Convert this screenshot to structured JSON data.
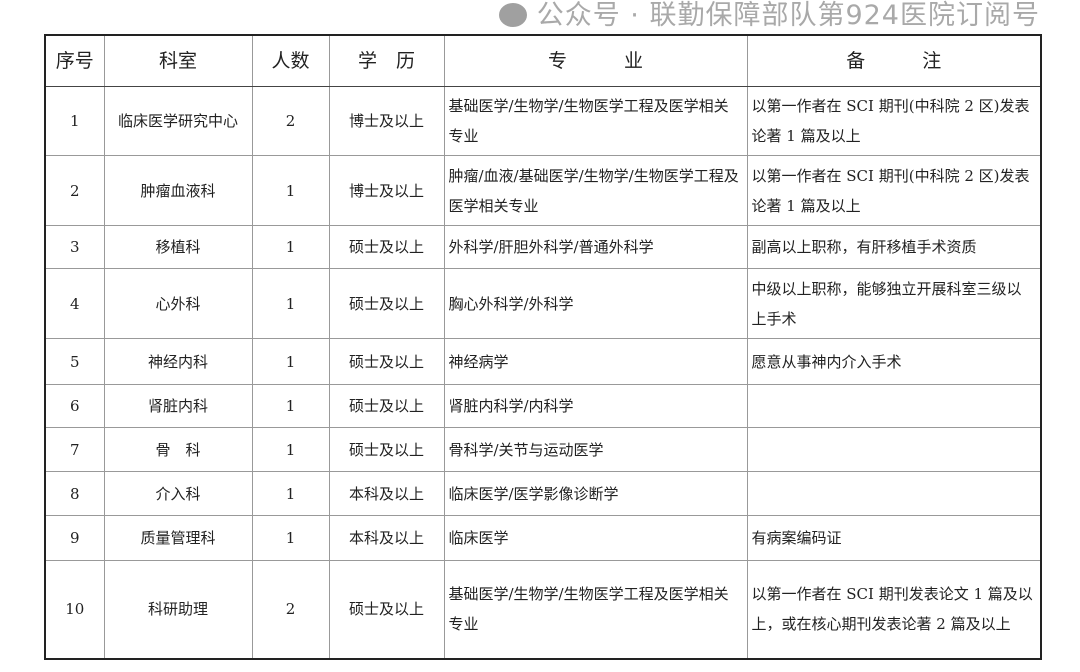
{
  "table": {
    "headers": [
      "序号",
      "科室",
      "人数",
      "学　历",
      "专　　　业",
      "备　　　注"
    ],
    "rows": [
      {
        "no": "1",
        "dept": "临床医学研究中心",
        "count": "2",
        "edu": "博士及以上",
        "major": "基础医学/生物学/生物医学工程及医学相关专业",
        "note": "以第一作者在 SCI 期刊(中科院 2 区)发表论著 1 篇及以上"
      },
      {
        "no": "2",
        "dept": "肿瘤血液科",
        "count": "1",
        "edu": "博士及以上",
        "major": "肿瘤/血液/基础医学/生物学/生物医学工程及医学相关专业",
        "note": "以第一作者在 SCI 期刊(中科院 2 区)发表论著 1 篇及以上"
      },
      {
        "no": "3",
        "dept": "移植科",
        "count": "1",
        "edu": "硕士及以上",
        "major": "外科学/肝胆外科学/普通外科学",
        "note": "副高以上职称，有肝移植手术资质"
      },
      {
        "no": "4",
        "dept": "心外科",
        "count": "1",
        "edu": "硕士及以上",
        "major": "胸心外科学/外科学",
        "note": "中级以上职称，能够独立开展科室三级以上手术"
      },
      {
        "no": "5",
        "dept": "神经内科",
        "count": "1",
        "edu": "硕士及以上",
        "major": "神经病学",
        "note": "愿意从事神内介入手术"
      },
      {
        "no": "6",
        "dept": "肾脏内科",
        "count": "1",
        "edu": "硕士及以上",
        "major": "肾脏内科学/内科学",
        "note": ""
      },
      {
        "no": "7",
        "dept": "骨　科",
        "count": "1",
        "edu": "硕士及以上",
        "major": "骨科学/关节与运动医学",
        "note": ""
      },
      {
        "no": "8",
        "dept": "介入科",
        "count": "1",
        "edu": "本科及以上",
        "major": "临床医学/医学影像诊断学",
        "note": ""
      },
      {
        "no": "9",
        "dept": "质量管理科",
        "count": "1",
        "edu": "本科及以上",
        "major": "临床医学",
        "note": "有病案编码证"
      },
      {
        "no": "10",
        "dept": "科研助理",
        "count": "2",
        "edu": "硕士及以上",
        "major": "基础医学/生物学/生物医学工程及医学相关专业",
        "note": "以第一作者在 SCI 期刊发表论文 1 篇及以上，或在核心期刊发表论著 2 篇及以上"
      }
    ]
  },
  "watermark": {
    "text": "公众号 · 联勤保障部队第924医院订阅号",
    "icon": "wechat-icon"
  }
}
